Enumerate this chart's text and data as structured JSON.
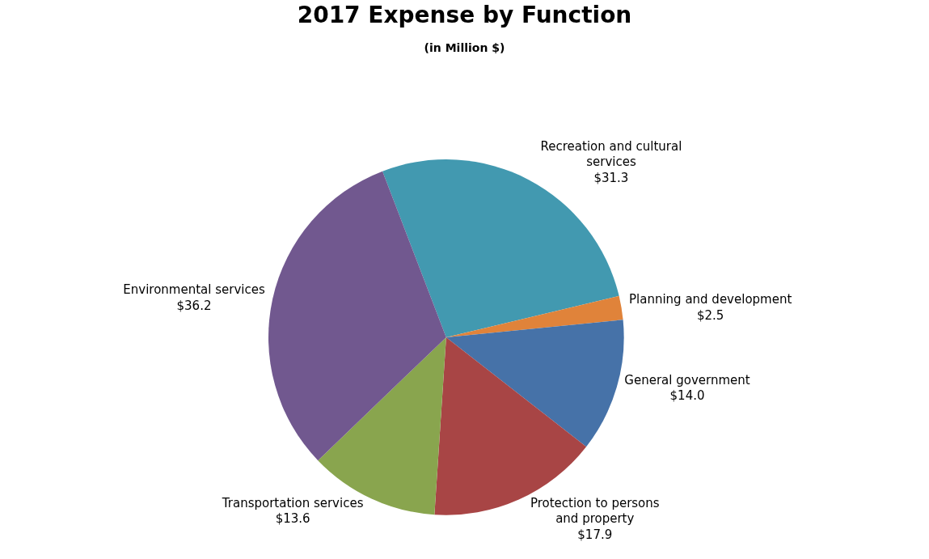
{
  "chart_data": {
    "type": "pie",
    "title": "2017 Expense by Function",
    "subtitle": "(in Million $)",
    "categories": [
      "Recreation and cultural services",
      "Planning and development",
      "General government",
      "Protection to persons and property",
      "Transportation services",
      "Environmental services"
    ],
    "values": [
      31.3,
      2.5,
      14.0,
      17.9,
      13.6,
      36.2
    ],
    "value_labels": [
      "$31.3",
      "$2.5",
      "$14.0",
      "$17.9",
      "$13.6",
      "$36.2"
    ],
    "colors": [
      "#4299b0",
      "#e0833a",
      "#4672a8",
      "#a84545",
      "#89a54e",
      "#71588f"
    ],
    "legend": false
  }
}
